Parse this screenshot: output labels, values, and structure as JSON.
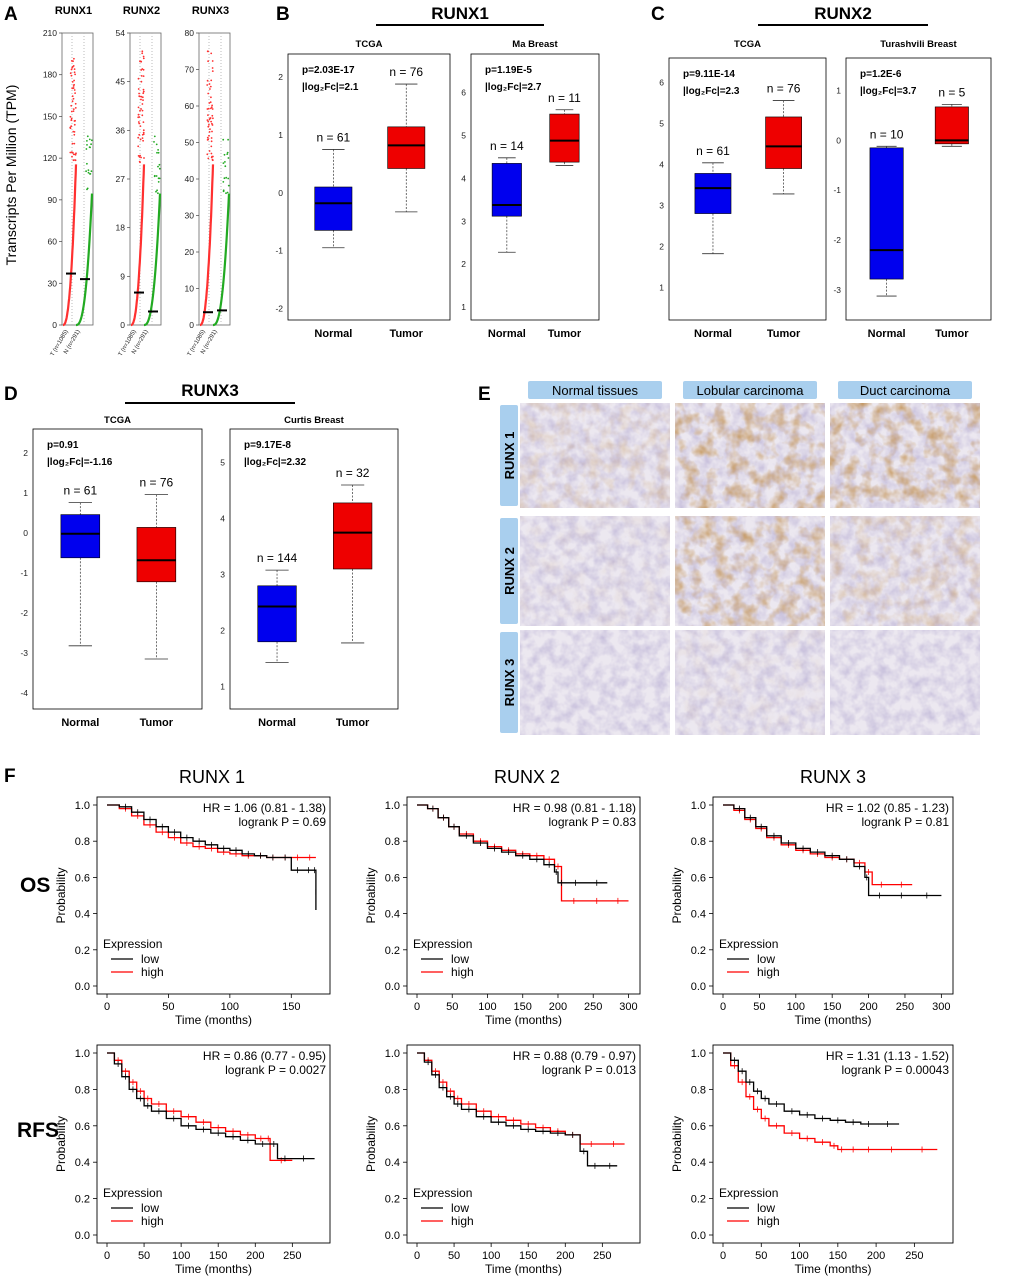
{
  "panels": {
    "A": {
      "letter": "A",
      "ylabel": "Transcripts Per Million (TPM)",
      "plots": [
        {
          "title": "RUNX1",
          "ymax": 210,
          "ticks": [
            0,
            30,
            60,
            90,
            120,
            150,
            180,
            210
          ],
          "labels": [
            "T (n=1085)",
            "N (n=291)"
          ],
          "medianT": 37,
          "medianN": 33
        },
        {
          "title": "RUNX2",
          "ymax": 54,
          "ticks": [
            0,
            9,
            18,
            27,
            36,
            45,
            54
          ],
          "labels": [
            "T (n=1085)",
            "N (n=291)"
          ],
          "medianT": 6,
          "medianN": 2.5
        },
        {
          "title": "RUNX3",
          "ymax": 80,
          "ticks": [
            0,
            10,
            20,
            30,
            40,
            50,
            60,
            70,
            80
          ],
          "labels": [
            "T (n=1085)",
            "N (n=291)"
          ],
          "medianT": 3.5,
          "medianN": 4
        }
      ]
    },
    "B": {
      "letter": "B",
      "gene": "RUNX1"
    },
    "C": {
      "letter": "C",
      "gene": "RUNX2"
    },
    "D": {
      "letter": "D",
      "gene": "RUNX3"
    },
    "E": {
      "letter": "E",
      "columns": [
        "Normal tissues",
        "Lobular carcinoma",
        "Duct carcinoma"
      ],
      "rows": [
        "RUNX 1",
        "RUNX 2",
        "RUNX 3"
      ]
    },
    "F": {
      "letter": "F",
      "rows": [
        "OS",
        "RFS"
      ],
      "genes": [
        "RUNX 1",
        "RUNX 2",
        "RUNX 3"
      ]
    }
  },
  "chart_data": [
    {
      "id": "B-TCGA",
      "type": "box",
      "title": "TCGA",
      "stat_p": "p=2.03E-17",
      "stat_fc": "|log₂Fc|=2.1",
      "ylim": [
        -2.2,
        2.4
      ],
      "yticks": [
        -2,
        -1,
        0,
        1,
        2
      ],
      "categories": [
        "Normal",
        "Tumor"
      ],
      "boxes": [
        {
          "n": "n = 61",
          "color": "#0000ee",
          "q1": -0.65,
          "median": -0.18,
          "q3": 0.1,
          "min": -0.95,
          "max": 0.75
        },
        {
          "n": "n = 76",
          "color": "#ee0000",
          "q1": 0.42,
          "median": 0.82,
          "q3": 1.14,
          "min": -0.33,
          "max": 1.88
        }
      ]
    },
    {
      "id": "B-Ma",
      "type": "box",
      "title": "Ma Breast",
      "stat_p": "p=1.19E-5",
      "stat_fc": "|log₂Fc|=2.7",
      "ylim": [
        0.7,
        6.9
      ],
      "yticks": [
        1,
        2,
        3,
        4,
        5,
        6
      ],
      "categories": [
        "Normal",
        "Tumor"
      ],
      "boxes": [
        {
          "n": "n = 14",
          "color": "#0000ee",
          "q1": 3.12,
          "median": 3.38,
          "q3": 4.35,
          "min": 2.28,
          "max": 4.48
        },
        {
          "n": "n = 11",
          "color": "#ee0000",
          "q1": 4.38,
          "median": 4.88,
          "q3": 5.5,
          "min": 4.3,
          "max": 5.6
        }
      ]
    },
    {
      "id": "C-TCGA",
      "type": "box",
      "title": "TCGA",
      "stat_p": "p=9.11E-14",
      "stat_fc": "|log₂Fc|=2.3",
      "ylim": [
        0.2,
        6.6
      ],
      "yticks": [
        1,
        2,
        3,
        4,
        5,
        6
      ],
      "categories": [
        "Normal",
        "Tumor"
      ],
      "boxes": [
        {
          "n": "n = 61",
          "color": "#0000ee",
          "q1": 2.8,
          "median": 3.42,
          "q3": 3.78,
          "min": 1.82,
          "max": 4.04
        },
        {
          "n": "n = 76",
          "color": "#ee0000",
          "q1": 3.9,
          "median": 4.44,
          "q3": 5.16,
          "min": 3.28,
          "max": 5.56
        }
      ]
    },
    {
      "id": "C-Turashvili",
      "type": "box",
      "title": "Turashvili Breast",
      "stat_p": "p=1.2E-6",
      "stat_fc": "|log₂Fc|=3.7",
      "ylim": [
        -3.6,
        1.65
      ],
      "yticks": [
        -3,
        -2,
        -1,
        0,
        1
      ],
      "categories": [
        "Normal",
        "Tumor"
      ],
      "boxes": [
        {
          "n": "n = 10",
          "color": "#0000ee",
          "q1": -2.78,
          "median": -2.2,
          "q3": -0.15,
          "min": -3.12,
          "max": -0.12
        },
        {
          "n": "n = 5",
          "color": "#ee0000",
          "q1": -0.07,
          "median": 0.0,
          "q3": 0.67,
          "min": -0.12,
          "max": 0.72
        }
      ]
    },
    {
      "id": "D-TCGA",
      "type": "box",
      "title": "TCGA",
      "stat_p": "p=0.91",
      "stat_fc": "|log₂Fc|=-1.16",
      "ylim": [
        -4.4,
        2.6
      ],
      "yticks": [
        -4,
        -3,
        -2,
        -1,
        0,
        1,
        2
      ],
      "categories": [
        "Normal",
        "Tumor"
      ],
      "boxes": [
        {
          "n": "n = 61",
          "color": "#0000ee",
          "q1": -0.62,
          "median": -0.02,
          "q3": 0.46,
          "min": -2.82,
          "max": 0.76
        },
        {
          "n": "n = 76",
          "color": "#ee0000",
          "q1": -1.22,
          "median": -0.68,
          "q3": 0.14,
          "min": -3.15,
          "max": 0.96
        }
      ]
    },
    {
      "id": "D-Curtis",
      "type": "box",
      "title": "Curtis Breast",
      "stat_p": "p=9.17E-8",
      "stat_fc": "|log₂Fc|=2.32",
      "ylim": [
        0.6,
        5.6
      ],
      "yticks": [
        1,
        2,
        3,
        4,
        5
      ],
      "categories": [
        "Normal",
        "Tumor"
      ],
      "boxes": [
        {
          "n": "n = 144",
          "color": "#0000ee",
          "q1": 1.8,
          "median": 2.43,
          "q3": 2.8,
          "min": 1.43,
          "max": 3.08
        },
        {
          "n": "n = 32",
          "color": "#ee0000",
          "q1": 3.1,
          "median": 3.75,
          "q3": 4.28,
          "min": 1.78,
          "max": 4.6
        }
      ]
    },
    {
      "id": "F-OS-RUNX1",
      "type": "line",
      "title": "RUNX 1",
      "xlabel": "Time (months)",
      "ylabel": "Probability",
      "hr": "HR = 1.06 (0.81 - 1.38)",
      "logrank": "logrank P = 0.69",
      "xticks": [
        0,
        50,
        100,
        150
      ],
      "xmax": 175,
      "yticks": [
        0.0,
        0.2,
        0.4,
        0.6,
        0.8,
        1.0
      ],
      "legend_title": "Expression",
      "series": [
        {
          "name": "low",
          "color": "#000000",
          "x": [
            0,
            10,
            20,
            30,
            40,
            50,
            60,
            70,
            80,
            90,
            100,
            110,
            120,
            130,
            140,
            150,
            160,
            168,
            170,
            170
          ],
          "y": [
            1.0,
            0.99,
            0.96,
            0.92,
            0.88,
            0.85,
            0.82,
            0.8,
            0.78,
            0.76,
            0.75,
            0.73,
            0.72,
            0.71,
            0.71,
            0.64,
            0.64,
            0.64,
            0.52,
            0.42
          ]
        },
        {
          "name": "high",
          "color": "#ff0000",
          "x": [
            0,
            10,
            20,
            30,
            40,
            50,
            60,
            70,
            80,
            90,
            100,
            110,
            120,
            130,
            140,
            150,
            160,
            170
          ],
          "y": [
            1.0,
            0.98,
            0.94,
            0.89,
            0.85,
            0.82,
            0.79,
            0.77,
            0.76,
            0.74,
            0.73,
            0.72,
            0.72,
            0.71,
            0.71,
            0.71,
            0.71,
            0.71
          ]
        }
      ]
    },
    {
      "id": "F-OS-RUNX2",
      "type": "line",
      "title": "RUNX 2",
      "xlabel": "Time (months)",
      "ylabel": "Probability",
      "hr": "HR = 0.98 (0.81 - 1.18)",
      "logrank": "logrank P = 0.83",
      "xticks": [
        0,
        50,
        100,
        150,
        200,
        250,
        300
      ],
      "xmax": 305,
      "yticks": [
        0.0,
        0.2,
        0.4,
        0.6,
        0.8,
        1.0
      ],
      "legend_title": "Expression",
      "series": [
        {
          "name": "low",
          "color": "#000000",
          "x": [
            0,
            15,
            30,
            45,
            60,
            80,
            100,
            120,
            140,
            160,
            180,
            195,
            200,
            210,
            240,
            270
          ],
          "y": [
            1.0,
            0.98,
            0.93,
            0.88,
            0.83,
            0.79,
            0.76,
            0.74,
            0.72,
            0.7,
            0.67,
            0.63,
            0.57,
            0.57,
            0.57,
            0.57
          ]
        },
        {
          "name": "high",
          "color": "#ff0000",
          "x": [
            0,
            15,
            30,
            45,
            60,
            80,
            100,
            120,
            140,
            160,
            180,
            195,
            205,
            240,
            270,
            300
          ],
          "y": [
            1.0,
            0.98,
            0.93,
            0.88,
            0.84,
            0.8,
            0.77,
            0.75,
            0.73,
            0.72,
            0.7,
            0.66,
            0.47,
            0.47,
            0.47,
            0.47
          ]
        }
      ]
    },
    {
      "id": "F-OS-RUNX3",
      "type": "line",
      "title": "RUNX 3",
      "xlabel": "Time (months)",
      "ylabel": "Probability",
      "hr": "HR = 1.02 (0.85 - 1.23)",
      "logrank": "logrank P = 0.81",
      "xticks": [
        0,
        50,
        100,
        150,
        200,
        250,
        300
      ],
      "xmax": 305,
      "yticks": [
        0.0,
        0.2,
        0.4,
        0.6,
        0.8,
        1.0
      ],
      "legend_title": "Expression",
      "series": [
        {
          "name": "low",
          "color": "#000000",
          "x": [
            0,
            15,
            30,
            45,
            60,
            80,
            100,
            120,
            140,
            160,
            180,
            195,
            200,
            230,
            260,
            300
          ],
          "y": [
            1.0,
            0.98,
            0.93,
            0.88,
            0.83,
            0.79,
            0.76,
            0.74,
            0.72,
            0.7,
            0.66,
            0.6,
            0.5,
            0.5,
            0.5,
            0.5
          ]
        },
        {
          "name": "high",
          "color": "#ff0000",
          "x": [
            0,
            15,
            30,
            45,
            60,
            80,
            100,
            120,
            140,
            160,
            180,
            195,
            205,
            230,
            260
          ],
          "y": [
            1.0,
            0.97,
            0.92,
            0.87,
            0.82,
            0.78,
            0.75,
            0.73,
            0.71,
            0.7,
            0.68,
            0.63,
            0.56,
            0.56,
            0.56
          ]
        }
      ]
    },
    {
      "id": "F-RFS-RUNX1",
      "type": "line",
      "xlabel": "Time (months)",
      "ylabel": "Probability",
      "hr": "HR = 0.86 (0.77 - 0.95)",
      "logrank": "logrank P = 0.0027",
      "xticks": [
        0,
        50,
        100,
        150,
        200,
        250
      ],
      "xmax": 290,
      "yticks": [
        0.0,
        0.2,
        0.4,
        0.6,
        0.8,
        1.0
      ],
      "legend_title": "Expression",
      "series": [
        {
          "name": "low",
          "color": "#000000",
          "x": [
            0,
            10,
            20,
            30,
            40,
            50,
            60,
            80,
            100,
            120,
            140,
            160,
            180,
            200,
            220,
            230,
            250,
            280
          ],
          "y": [
            1.0,
            0.94,
            0.87,
            0.8,
            0.75,
            0.71,
            0.68,
            0.64,
            0.6,
            0.58,
            0.56,
            0.54,
            0.52,
            0.5,
            0.5,
            0.42,
            0.42,
            0.42
          ]
        },
        {
          "name": "high",
          "color": "#ff0000",
          "x": [
            0,
            10,
            20,
            30,
            40,
            50,
            60,
            80,
            100,
            120,
            140,
            160,
            180,
            200,
            215,
            220,
            250
          ],
          "y": [
            1.0,
            0.96,
            0.9,
            0.84,
            0.79,
            0.75,
            0.72,
            0.68,
            0.65,
            0.62,
            0.59,
            0.57,
            0.55,
            0.53,
            0.53,
            0.41,
            0.41
          ]
        }
      ]
    },
    {
      "id": "F-RFS-RUNX2",
      "type": "line",
      "xlabel": "Time (months)",
      "ylabel": "Probability",
      "hr": "HR = 0.88 (0.79 - 0.97)",
      "logrank": "logrank P = 0.013",
      "xticks": [
        0,
        50,
        100,
        150,
        200,
        250
      ],
      "xmax": 290,
      "yticks": [
        0.0,
        0.2,
        0.4,
        0.6,
        0.8,
        1.0
      ],
      "legend_title": "Expression",
      "series": [
        {
          "name": "low",
          "color": "#000000",
          "x": [
            0,
            10,
            20,
            30,
            40,
            50,
            60,
            80,
            100,
            120,
            140,
            160,
            180,
            200,
            220,
            230,
            250,
            270
          ],
          "y": [
            1.0,
            0.95,
            0.88,
            0.81,
            0.76,
            0.72,
            0.69,
            0.65,
            0.62,
            0.6,
            0.58,
            0.57,
            0.56,
            0.55,
            0.46,
            0.38,
            0.38,
            0.38
          ]
        },
        {
          "name": "high",
          "color": "#ff0000",
          "x": [
            0,
            10,
            20,
            30,
            40,
            50,
            60,
            80,
            100,
            120,
            140,
            160,
            180,
            200,
            220,
            250,
            280
          ],
          "y": [
            1.0,
            0.96,
            0.9,
            0.84,
            0.79,
            0.75,
            0.72,
            0.68,
            0.65,
            0.63,
            0.61,
            0.59,
            0.57,
            0.55,
            0.5,
            0.5,
            0.5
          ]
        }
      ]
    },
    {
      "id": "F-RFS-RUNX3",
      "type": "line",
      "xlabel": "Time (months)",
      "ylabel": "Probability",
      "hr": "HR = 1.31 (1.13 - 1.52)",
      "logrank": "logrank P = 0.00043",
      "xticks": [
        0,
        50,
        100,
        150,
        200,
        250
      ],
      "xmax": 290,
      "yticks": [
        0.0,
        0.2,
        0.4,
        0.6,
        0.8,
        1.0
      ],
      "legend_title": "Expression",
      "series": [
        {
          "name": "low",
          "color": "#000000",
          "x": [
            0,
            10,
            20,
            30,
            40,
            50,
            60,
            80,
            100,
            120,
            140,
            160,
            180,
            200,
            230
          ],
          "y": [
            1.0,
            0.96,
            0.9,
            0.84,
            0.79,
            0.75,
            0.72,
            0.68,
            0.66,
            0.64,
            0.63,
            0.62,
            0.61,
            0.61,
            0.61
          ]
        },
        {
          "name": "high",
          "color": "#ff0000",
          "x": [
            0,
            10,
            20,
            30,
            40,
            50,
            60,
            80,
            100,
            120,
            140,
            150,
            160,
            180,
            200,
            240,
            280
          ],
          "y": [
            1.0,
            0.93,
            0.84,
            0.76,
            0.69,
            0.64,
            0.6,
            0.56,
            0.53,
            0.51,
            0.49,
            0.47,
            0.47,
            0.47,
            0.47,
            0.47,
            0.47
          ]
        }
      ]
    }
  ]
}
